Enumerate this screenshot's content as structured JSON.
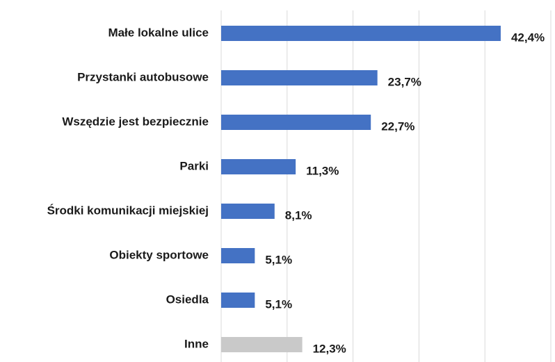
{
  "chart_data": {
    "type": "bar",
    "orientation": "horizontal",
    "categories": [
      "Małe lokalne ulice",
      "Przystanki autobusowe",
      "Wszędzie jest bezpiecznie",
      "Parki",
      "Środki komunikacji miejskiej",
      "Obiekty sportowe",
      "Osiedla",
      "Inne"
    ],
    "values": [
      42.4,
      23.7,
      22.7,
      11.3,
      8.1,
      5.1,
      5.1,
      12.3
    ],
    "value_labels": [
      "42,4%",
      "23,7%",
      "22,7%",
      "11,3%",
      "8,1%",
      "5,1%",
      "5,1%",
      "12,3%"
    ],
    "colors": [
      "#4472c4",
      "#4472c4",
      "#4472c4",
      "#4472c4",
      "#4472c4",
      "#4472c4",
      "#4472c4",
      "#c9c9c9"
    ],
    "xlim": [
      0,
      50
    ],
    "xticks": [
      0,
      10,
      20,
      30,
      40,
      50
    ],
    "grid": true
  }
}
